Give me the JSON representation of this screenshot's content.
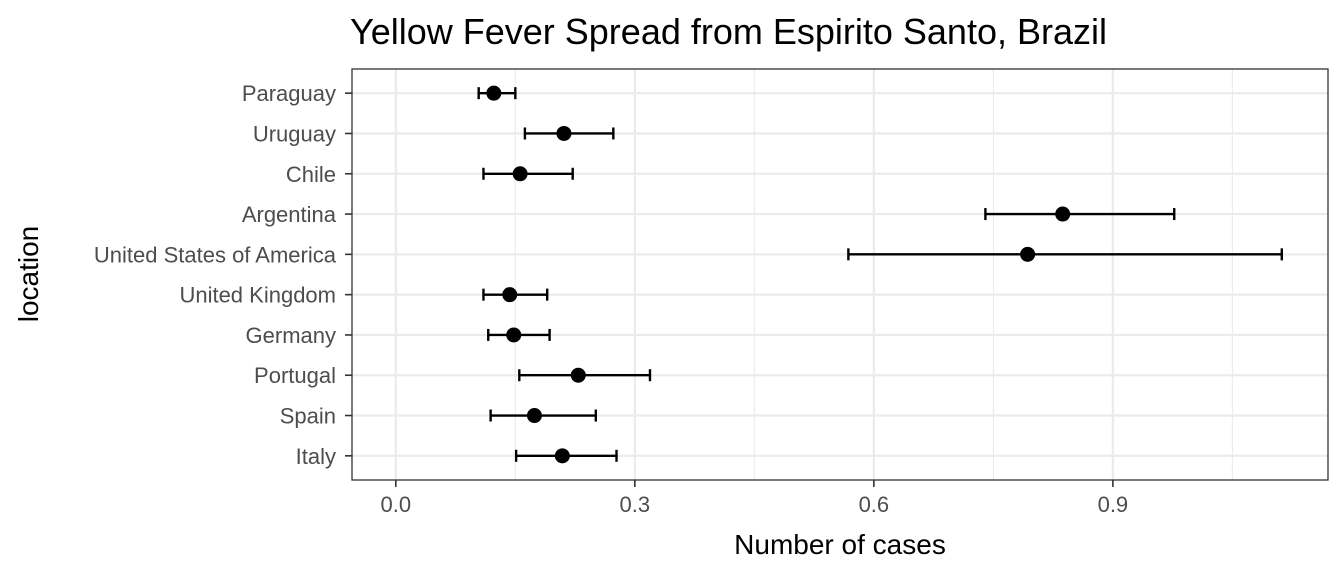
{
  "chart_data": {
    "type": "scatter",
    "subtype": "point-range (dot with horizontal error bars)",
    "title": "Yellow Fever Spread from Espirito Santo, Brazil",
    "xlabel": "Number of cases",
    "ylabel": "location",
    "xlim": [
      -0.055,
      1.17
    ],
    "x_ticks": [
      0.0,
      0.3,
      0.6,
      0.9
    ],
    "x_tick_labels": [
      "0.0",
      "0.3",
      "0.6",
      "0.9"
    ],
    "categories": [
      "Paraguay",
      "Uruguay",
      "Chile",
      "Argentina",
      "United States of America",
      "United Kingdom",
      "Germany",
      "Portugal",
      "Spain",
      "Italy"
    ],
    "values": [
      0.123,
      0.211,
      0.156,
      0.837,
      0.793,
      0.143,
      0.148,
      0.229,
      0.174,
      0.209
    ],
    "lower": [
      0.104,
      0.162,
      0.11,
      0.74,
      0.568,
      0.11,
      0.116,
      0.155,
      0.119,
      0.151
    ],
    "upper": [
      0.15,
      0.273,
      0.222,
      0.977,
      1.112,
      0.19,
      0.193,
      0.319,
      0.251,
      0.277
    ],
    "grid": true,
    "theme": "black-and-white with light gray gridlines",
    "point_color": "#000000",
    "grid_color": "#ebebeb"
  }
}
